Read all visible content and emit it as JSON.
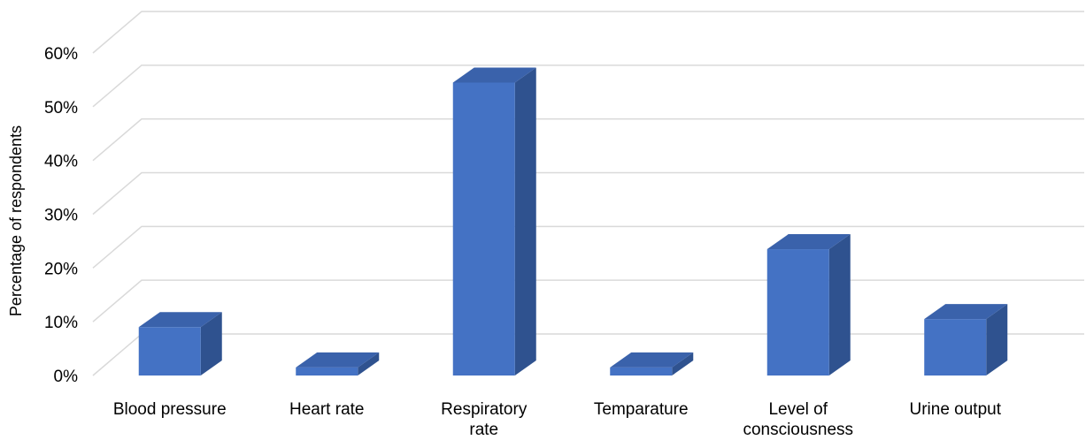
{
  "chart_data": {
    "type": "bar",
    "categories": [
      [
        "Blood pressure"
      ],
      [
        "Heart rate"
      ],
      [
        "Respiratory",
        "rate"
      ],
      [
        "Temparature"
      ],
      [
        "Level of",
        "consciousness"
      ],
      [
        "Urine output"
      ]
    ],
    "values": [
      9,
      1.5,
      54.5,
      1.5,
      23.5,
      10.5
    ],
    "ylabel": "Percentage of respondents",
    "yticks": [
      "0%",
      "10%",
      "20%",
      "30%",
      "40%",
      "50%",
      "60%"
    ],
    "ylim": [
      0,
      60
    ],
    "grid": true,
    "colors": {
      "front": "#4472c4",
      "side": "#2f528f",
      "top": "#3a62ab",
      "grid": "#d9d9d9"
    }
  }
}
